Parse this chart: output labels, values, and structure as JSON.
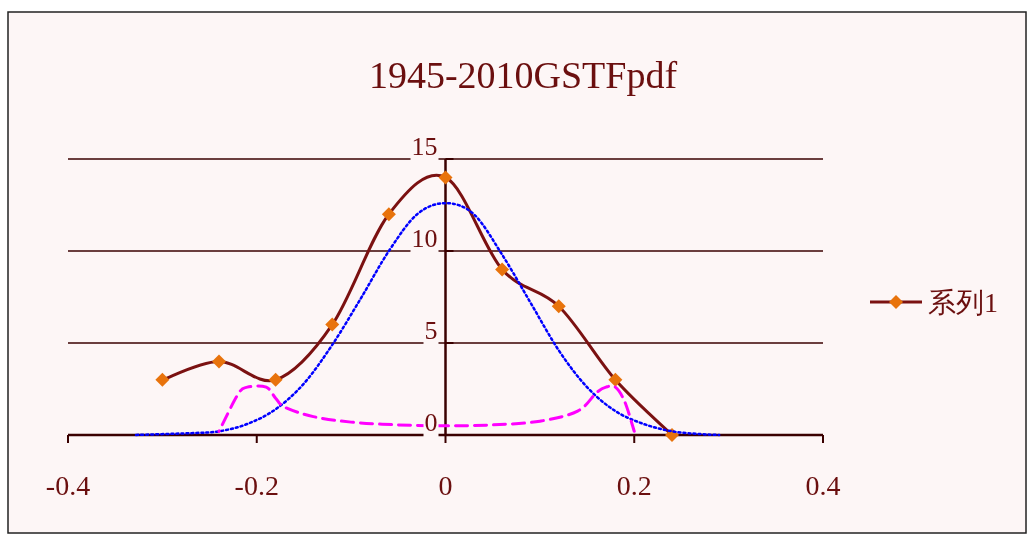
{
  "chart_data": {
    "type": "line",
    "title": "1945-2010GSTFpdf",
    "xlim": [
      -0.4,
      0.4
    ],
    "xticks": [
      -0.4,
      -0.2,
      0,
      0.2,
      0.4
    ],
    "ylim": [
      0,
      15
    ],
    "yticks": [
      0,
      5,
      10,
      15
    ],
    "grid": "y",
    "legend": "right",
    "series": [
      {
        "name": "系列1",
        "color": "#7b1111",
        "colors": [
          "#e8730c",
          "#e8730c",
          "#e8730c",
          "#e8730c",
          "#e8730c",
          "#e8730c",
          "#e8730c",
          "#e8730c",
          "#e8730c",
          "#e8730c"
        ],
        "marker": "diamond",
        "line_style": "solid",
        "x": [
          -0.3,
          -0.24,
          -0.18,
          -0.12,
          -0.06,
          0,
          0.06,
          0.12,
          0.18,
          0.24
        ],
        "values": [
          3,
          4,
          3,
          6,
          12,
          14,
          9,
          7,
          3,
          0
        ]
      },
      {
        "color": "#0000ff",
        "marker": "none",
        "line_style": "dotted",
        "x": [
          -0.33,
          -0.27,
          -0.24,
          -0.21,
          -0.18,
          -0.15,
          -0.12,
          -0.09,
          -0.06,
          -0.03,
          0,
          0.03,
          0.06,
          0.09,
          0.12,
          0.15,
          0.18,
          0.21,
          0.24,
          0.27,
          0.29
        ],
        "values": [
          0,
          0.1,
          0.2,
          0.6,
          1.4,
          2.8,
          4.9,
          7.4,
          10,
          12,
          12.6,
          12,
          9.8,
          7.2,
          4.6,
          2.6,
          1.3,
          0.6,
          0.2,
          0.05,
          0
        ]
      },
      {
        "color": "#ff00ff",
        "marker": "none",
        "line_style": "dashed",
        "x": [
          -0.24,
          -0.22,
          -0.21,
          -0.19,
          -0.18,
          -0.17,
          -0.14,
          -0.1,
          -0.05,
          0,
          0.05,
          0.1,
          0.14,
          0.16,
          0.17,
          0.18,
          0.19,
          0.2
        ],
        "values": [
          0.2,
          2.2,
          2.6,
          2.6,
          2.0,
          1.5,
          1.0,
          0.7,
          0.55,
          0.5,
          0.55,
          0.75,
          1.3,
          2.3,
          2.6,
          2.6,
          1.8,
          0.2
        ]
      }
    ]
  }
}
